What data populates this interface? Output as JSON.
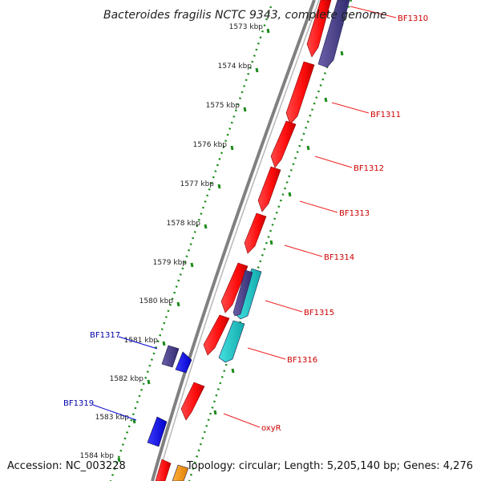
{
  "title": "Bacteroides fragilis NCTC 9343, complete genome",
  "footer": {
    "accession": "Accession: NC_003228",
    "topology": "Topology: circular; Length: 5,205,140 bp; Genes: 4,276"
  },
  "ticks": [
    "1573 kbp",
    "1574 kbp",
    "1575 kbp",
    "1576 kbp",
    "1577 kbp",
    "1578 kbp",
    "1579 kbp",
    "1580 kbp",
    "1581 kbp",
    "1582 kbp",
    "1583 kbp",
    "1584 kbp"
  ],
  "gene_labels": [
    {
      "text": "BF1310",
      "strand": "forward"
    },
    {
      "text": "BF1311",
      "strand": "forward"
    },
    {
      "text": "BF1312",
      "strand": "forward"
    },
    {
      "text": "BF1313",
      "strand": "forward"
    },
    {
      "text": "BF1314",
      "strand": "forward"
    },
    {
      "text": "BF1315",
      "strand": "forward"
    },
    {
      "text": "BF1316",
      "strand": "forward"
    },
    {
      "text": "oxyR",
      "strand": "forward"
    },
    {
      "text": "BF1317",
      "strand": "reverse"
    },
    {
      "text": "BF1319",
      "strand": "reverse"
    }
  ],
  "colors": {
    "forward_label": "#cc0000",
    "reverse_label": "#0000aa",
    "cds_red": "#ff1111",
    "cds_purple": "#4a4288",
    "cds_blue": "#1a1aee",
    "cds_cyan": "#22cccc",
    "cds_orange": "#ff9900",
    "tick_green": "#1a8a1a",
    "backbone": "#808080"
  }
}
